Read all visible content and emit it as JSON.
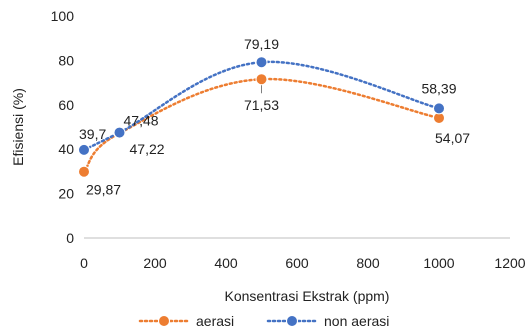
{
  "chart_data": {
    "type": "scatter",
    "xlabel": "Konsentrasi Ekstrak (ppm)",
    "ylabel": "Efisiensi (%)",
    "xlim": [
      0,
      1200
    ],
    "ylim": [
      0,
      100
    ],
    "xticks": [
      0,
      200,
      400,
      600,
      800,
      1000,
      1200
    ],
    "yticks": [
      0,
      20,
      40,
      60,
      80,
      100
    ],
    "x_tick_labels": [
      "0",
      "200",
      "400",
      "600",
      "800",
      "1000",
      "1200"
    ],
    "y_tick_labels": [
      "0",
      "20",
      "40",
      "60",
      "80",
      "100"
    ],
    "smooth_lines": true,
    "grid": false,
    "legend_position": "bottom",
    "series": [
      {
        "name": "aerasi",
        "color": "#ED7D31",
        "line_style": "dotted",
        "x": [
          0,
          100,
          500,
          1000
        ],
        "y": [
          29.87,
          47.22,
          71.53,
          54.07
        ],
        "labels": [
          "29,87",
          "47,22",
          "71,53",
          "54,07"
        ]
      },
      {
        "name": "non aerasi",
        "color": "#4472C4",
        "line_style": "dotted",
        "x": [
          0,
          100,
          500,
          1000
        ],
        "y": [
          39.7,
          47.48,
          79.19,
          58.39
        ],
        "labels": [
          "39,7",
          "47,48",
          "79,19",
          "58,39"
        ]
      }
    ]
  }
}
